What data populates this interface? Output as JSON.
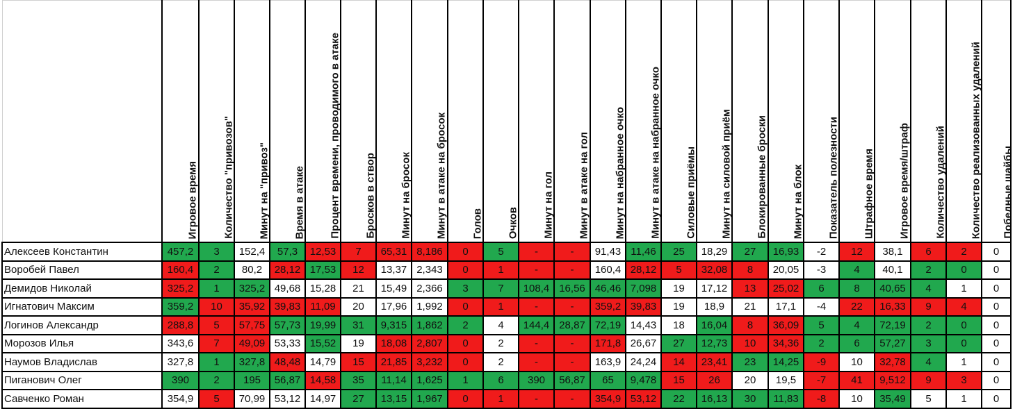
{
  "columns": [
    "Игровое время",
    "Количество \"привозов\"",
    "Минут на \"привоз\"",
    "Время в атаке",
    "Процент времени, проводимого в атаке",
    "Бросков в створ",
    "Минут на бросок",
    "Минут в атаке на бросок",
    "Голов",
    "Очков",
    "Минут на гол",
    "Минут в атаке на гол",
    "Минут на набранное очко",
    "Минут в атаке на набранное очко",
    "Силовые приёмы",
    "Минут на силовой приём",
    "Блокированные броски",
    "Минут на блок",
    "Показатель полезности",
    "Штрафное время",
    "Игровое время/штраф",
    "Количество удалений",
    "Количество реализованных удалений",
    "Победные шайбы"
  ],
  "rows": [
    {
      "name": "Алексеев Константин",
      "values": [
        "457,2",
        "3",
        "152,4",
        "57,3",
        "12,53",
        "7",
        "65,31",
        "8,186",
        "0",
        "5",
        "-",
        "-",
        "91,43",
        "11,46",
        "25",
        "18,29",
        "27",
        "16,93",
        "-2",
        "12",
        "38,1",
        "6",
        "2",
        "0"
      ],
      "colors": [
        "g",
        "g",
        "w",
        "g",
        "r",
        "r",
        "r",
        "r",
        "r",
        "g",
        "r",
        "r",
        "w",
        "g",
        "g",
        "w",
        "g",
        "g",
        "w",
        "r",
        "w",
        "r",
        "r",
        "w"
      ]
    },
    {
      "name": "Воробей Павел",
      "values": [
        "160,4",
        "2",
        "80,2",
        "28,12",
        "17,53",
        "12",
        "13,37",
        "2,343",
        "0",
        "1",
        "-",
        "-",
        "160,4",
        "28,12",
        "5",
        "32,08",
        "8",
        "20,05",
        "-3",
        "4",
        "40,1",
        "2",
        "0",
        "0"
      ],
      "colors": [
        "r",
        "g",
        "w",
        "r",
        "g",
        "r",
        "w",
        "w",
        "r",
        "r",
        "r",
        "r",
        "w",
        "r",
        "r",
        "r",
        "r",
        "w",
        "w",
        "g",
        "w",
        "g",
        "g",
        "w"
      ]
    },
    {
      "name": "Демидов Николай",
      "values": [
        "325,2",
        "1",
        "325,2",
        "49,68",
        "15,28",
        "21",
        "15,49",
        "2,366",
        "3",
        "7",
        "108,4",
        "16,56",
        "46,46",
        "7,098",
        "19",
        "17,12",
        "13",
        "25,02",
        "6",
        "8",
        "40,65",
        "4",
        "1",
        "0"
      ],
      "colors": [
        "r",
        "g",
        "g",
        "w",
        "w",
        "w",
        "w",
        "w",
        "g",
        "g",
        "g",
        "g",
        "g",
        "g",
        "w",
        "w",
        "r",
        "r",
        "g",
        "g",
        "g",
        "g",
        "w",
        "w"
      ]
    },
    {
      "name": "Игнатович Максим",
      "values": [
        "359,2",
        "10",
        "35,92",
        "39,83",
        "11,09",
        "20",
        "17,96",
        "1,992",
        "0",
        "1",
        "-",
        "-",
        "359,2",
        "39,83",
        "19",
        "18,9",
        "21",
        "17,1",
        "-4",
        "22",
        "16,33",
        "9",
        "4",
        "0"
      ],
      "colors": [
        "g",
        "r",
        "r",
        "r",
        "r",
        "w",
        "w",
        "w",
        "r",
        "r",
        "r",
        "r",
        "r",
        "r",
        "w",
        "w",
        "w",
        "w",
        "w",
        "r",
        "r",
        "r",
        "r",
        "w"
      ]
    },
    {
      "name": "Логинов Александр",
      "values": [
        "288,8",
        "5",
        "57,75",
        "57,73",
        "19,99",
        "31",
        "9,315",
        "1,862",
        "2",
        "4",
        "144,4",
        "28,87",
        "72,19",
        "14,43",
        "18",
        "16,04",
        "8",
        "36,09",
        "5",
        "4",
        "72,19",
        "2",
        "0",
        "0"
      ],
      "colors": [
        "r",
        "r",
        "r",
        "g",
        "g",
        "g",
        "g",
        "g",
        "g",
        "w",
        "g",
        "g",
        "g",
        "w",
        "w",
        "g",
        "r",
        "r",
        "g",
        "g",
        "g",
        "g",
        "g",
        "w"
      ]
    },
    {
      "name": "Морозов Илья",
      "values": [
        "343,6",
        "7",
        "49,09",
        "53,33",
        "15,52",
        "19",
        "18,08",
        "2,807",
        "0",
        "2",
        "-",
        "-",
        "171,8",
        "26,67",
        "27",
        "12,73",
        "10",
        "34,36",
        "2",
        "6",
        "57,27",
        "3",
        "0",
        "0"
      ],
      "colors": [
        "w",
        "r",
        "r",
        "w",
        "g",
        "w",
        "r",
        "r",
        "r",
        "w",
        "r",
        "r",
        "r",
        "w",
        "g",
        "g",
        "r",
        "r",
        "g",
        "g",
        "g",
        "g",
        "g",
        "w"
      ]
    },
    {
      "name": "Наумов Владислав",
      "values": [
        "327,8",
        "1",
        "327,8",
        "48,48",
        "14,79",
        "15",
        "21,85",
        "3,232",
        "0",
        "2",
        "-",
        "-",
        "163,9",
        "24,24",
        "14",
        "23,41",
        "23",
        "14,25",
        "-9",
        "10",
        "32,78",
        "4",
        "1",
        "0"
      ],
      "colors": [
        "w",
        "g",
        "g",
        "r",
        "w",
        "r",
        "r",
        "r",
        "r",
        "w",
        "r",
        "r",
        "w",
        "w",
        "r",
        "r",
        "g",
        "g",
        "r",
        "w",
        "r",
        "g",
        "w",
        "w"
      ]
    },
    {
      "name": "Пиганович Олег",
      "values": [
        "390",
        "2",
        "195",
        "56,87",
        "14,58",
        "35",
        "11,14",
        "1,625",
        "1",
        "6",
        "390",
        "56,87",
        "65",
        "9,478",
        "15",
        "26",
        "20",
        "19,5",
        "-7",
        "41",
        "9,512",
        "9",
        "3",
        "0"
      ],
      "colors": [
        "g",
        "g",
        "g",
        "g",
        "r",
        "g",
        "g",
        "g",
        "g",
        "g",
        "g",
        "g",
        "g",
        "g",
        "r",
        "r",
        "w",
        "w",
        "r",
        "r",
        "r",
        "r",
        "r",
        "w"
      ]
    },
    {
      "name": "Савченко Роман",
      "values": [
        "354,9",
        "5",
        "70,99",
        "53,12",
        "14,97",
        "27",
        "13,15",
        "1,967",
        "0",
        "1",
        "-",
        "-",
        "354,9",
        "53,12",
        "22",
        "16,13",
        "30",
        "11,83",
        "-8",
        "10",
        "35,49",
        "5",
        "1",
        "0"
      ],
      "colors": [
        "w",
        "r",
        "w",
        "w",
        "w",
        "g",
        "g",
        "g",
        "r",
        "r",
        "r",
        "r",
        "r",
        "r",
        "g",
        "g",
        "g",
        "g",
        "r",
        "w",
        "g",
        "w",
        "w",
        "w"
      ]
    }
  ]
}
